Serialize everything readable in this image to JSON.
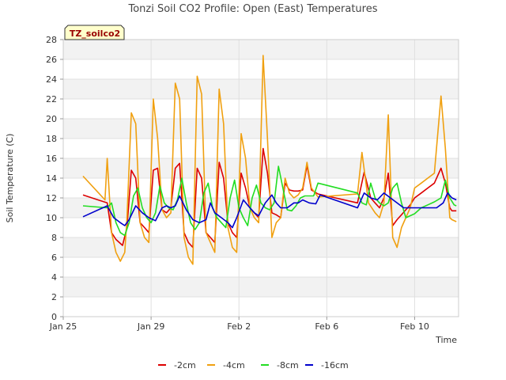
{
  "chart_data": {
    "type": "line",
    "title": "Tonzi Soil CO2 Profile: Open (East) Temperatures",
    "xlabel": "Time",
    "ylabel": "Soil Temperature (C)",
    "site_label": "TZ_soilco2",
    "xlim": [
      0,
      18
    ],
    "ylim": [
      0,
      28
    ],
    "yticks": [
      0,
      2,
      4,
      6,
      8,
      10,
      12,
      14,
      16,
      18,
      20,
      22,
      24,
      26,
      28
    ],
    "xticks": [
      {
        "x": 0,
        "label": "Jan 25"
      },
      {
        "x": 4,
        "label": "Jan 29"
      },
      {
        "x": 8,
        "label": "Feb 2"
      },
      {
        "x": 12,
        "label": "Feb 6"
      },
      {
        "x": 16,
        "label": "Feb 10"
      }
    ],
    "grid": true,
    "legend": "bottom",
    "series": [
      {
        "name": "-2cm",
        "color": "#dd0000",
        "x": [
          0.9,
          2.0,
          2.2,
          2.4,
          2.7,
          2.9,
          3.1,
          3.3,
          3.5,
          3.7,
          3.9,
          4.1,
          4.3,
          4.5,
          4.7,
          4.9,
          5.1,
          5.3,
          5.5,
          5.7,
          5.9,
          6.1,
          6.3,
          6.5,
          6.7,
          6.9,
          7.1,
          7.3,
          7.5,
          7.7,
          7.9,
          8.1,
          8.3,
          8.5,
          8.7,
          8.9,
          9.1,
          9.3,
          9.5,
          9.7,
          9.9,
          10.1,
          10.3,
          10.5,
          10.7,
          10.9,
          11.1,
          11.3,
          11.6,
          13.4,
          13.7,
          14.0,
          14.2,
          14.4,
          14.6,
          14.8,
          15.0,
          15.2,
          15.4,
          15.6,
          15.8,
          16.0,
          16.3,
          16.6,
          16.9,
          17.2,
          17.4,
          17.6,
          17.7,
          17.9
        ],
        "y": [
          12.3,
          11.5,
          8.5,
          7.8,
          7.2,
          9.0,
          14.8,
          14.0,
          9.5,
          9.0,
          8.5,
          14.8,
          15.0,
          10.8,
          10.5,
          11.0,
          15.0,
          15.5,
          8.5,
          7.5,
          7.0,
          15.0,
          14.0,
          8.5,
          8.0,
          7.5,
          15.6,
          14.0,
          9.5,
          8.5,
          8.0,
          14.5,
          13.0,
          11.0,
          10.5,
          10.0,
          17.0,
          14.5,
          10.5,
          10.3,
          10.0,
          13.5,
          12.8,
          12.7,
          12.7,
          12.8,
          15.3,
          12.8,
          12.4,
          11.5,
          14.6,
          12.0,
          11.5,
          11.0,
          12.0,
          14.5,
          9.2,
          9.8,
          10.3,
          10.8,
          11.3,
          12.0,
          12.5,
          13.0,
          13.5,
          15.0,
          13.5,
          11.0,
          10.7,
          10.7
        ]
      },
      {
        "name": "-4cm",
        "color": "#f0a010",
        "x": [
          0.9,
          1.9,
          2.0,
          2.2,
          2.4,
          2.6,
          2.8,
          2.9,
          3.1,
          3.3,
          3.5,
          3.7,
          3.9,
          4.1,
          4.3,
          4.5,
          4.7,
          4.9,
          5.1,
          5.3,
          5.5,
          5.7,
          5.9,
          6.1,
          6.3,
          6.5,
          6.7,
          6.9,
          7.1,
          7.3,
          7.5,
          7.7,
          7.9,
          8.1,
          8.3,
          8.5,
          8.7,
          8.9,
          9.1,
          9.3,
          9.5,
          9.7,
          9.9,
          10.1,
          10.3,
          10.5,
          10.7,
          10.9,
          11.1,
          11.3,
          11.6,
          13.4,
          13.6,
          13.9,
          14.2,
          14.4,
          14.6,
          14.8,
          15.0,
          15.2,
          15.4,
          15.6,
          15.8,
          16.0,
          16.3,
          16.6,
          16.9,
          17.2,
          17.4,
          17.6,
          17.7,
          17.9
        ],
        "y": [
          14.2,
          11.8,
          16.0,
          8.5,
          6.5,
          5.6,
          6.5,
          10.0,
          20.6,
          19.5,
          9.5,
          8.0,
          7.5,
          22.0,
          18.0,
          10.8,
          10.0,
          10.5,
          23.6,
          22.0,
          8.0,
          6.0,
          5.3,
          24.3,
          22.5,
          8.5,
          7.5,
          6.5,
          23.0,
          19.5,
          9.0,
          7.0,
          6.5,
          18.5,
          16.0,
          11.0,
          10.0,
          9.5,
          26.4,
          18.0,
          8.0,
          9.5,
          10.0,
          14.0,
          12.5,
          12.0,
          12.3,
          13.0,
          15.6,
          13.0,
          12.1,
          12.4,
          16.6,
          11.5,
          10.5,
          10.0,
          11.5,
          20.4,
          8.0,
          7.0,
          9.0,
          10.0,
          11.0,
          13.0,
          13.5,
          14.0,
          14.5,
          22.3,
          17.0,
          10.0,
          9.8,
          9.6
        ]
      },
      {
        "name": "-8cm",
        "color": "#22dd22",
        "x": [
          0.9,
          2.0,
          2.2,
          2.4,
          2.6,
          2.8,
          3.0,
          3.2,
          3.4,
          3.6,
          3.8,
          4.0,
          4.2,
          4.4,
          4.6,
          4.8,
          5.0,
          5.2,
          5.4,
          5.6,
          5.8,
          6.0,
          6.2,
          6.4,
          6.6,
          6.8,
          7.0,
          7.2,
          7.4,
          7.6,
          7.8,
          8.0,
          8.2,
          8.4,
          8.6,
          8.8,
          9.0,
          9.2,
          9.4,
          9.6,
          9.8,
          10.0,
          10.2,
          10.4,
          10.6,
          10.8,
          11.0,
          11.2,
          11.4,
          11.6,
          13.4,
          13.6,
          13.8,
          14.0,
          14.2,
          14.4,
          14.6,
          14.8,
          15.0,
          15.2,
          15.4,
          15.6,
          15.8,
          16.0,
          16.3,
          16.6,
          16.9,
          17.2,
          17.4,
          17.6,
          17.8,
          17.9
        ],
        "y": [
          11.2,
          11.0,
          11.5,
          9.5,
          8.5,
          8.2,
          9.5,
          12.2,
          13.0,
          11.0,
          10.0,
          9.5,
          10.5,
          13.2,
          11.5,
          11.0,
          10.8,
          11.8,
          14.0,
          11.5,
          9.5,
          8.8,
          9.5,
          12.5,
          13.5,
          11.0,
          10.0,
          9.5,
          9.0,
          12.0,
          13.8,
          11.0,
          10.0,
          9.2,
          12.0,
          13.3,
          11.5,
          11.0,
          10.8,
          11.5,
          15.2,
          13.0,
          10.8,
          10.7,
          11.2,
          12.0,
          12.2,
          12.2,
          12.2,
          13.5,
          12.5,
          11.5,
          11.3,
          13.5,
          12.0,
          11.5,
          11.2,
          11.5,
          13.0,
          13.5,
          11.5,
          10.0,
          10.2,
          10.4,
          11.0,
          11.3,
          11.6,
          12.0,
          13.8,
          12.0,
          11.3,
          11.2
        ]
      },
      {
        "name": "-16cm",
        "color": "#0000cc",
        "x": [
          0.9,
          2.0,
          2.3,
          2.6,
          2.8,
          3.0,
          3.3,
          3.6,
          3.9,
          4.2,
          4.5,
          4.7,
          4.9,
          5.1,
          5.3,
          5.6,
          5.9,
          6.2,
          6.5,
          6.7,
          6.9,
          7.2,
          7.5,
          7.7,
          7.9,
          8.2,
          8.5,
          8.7,
          8.9,
          9.2,
          9.5,
          9.7,
          9.9,
          10.2,
          10.5,
          10.7,
          10.9,
          11.2,
          11.5,
          11.7,
          13.4,
          13.7,
          14.0,
          14.3,
          14.6,
          14.9,
          15.2,
          15.5,
          15.8,
          16.1,
          16.4,
          16.7,
          17.0,
          17.3,
          17.5,
          17.7,
          17.9
        ],
        "y": [
          10.1,
          11.2,
          10.0,
          9.5,
          9.2,
          9.8,
          11.2,
          10.5,
          10.0,
          9.7,
          11.0,
          11.2,
          11.0,
          11.2,
          12.2,
          10.8,
          9.8,
          9.5,
          9.8,
          11.5,
          10.5,
          10.0,
          9.5,
          9.0,
          10.0,
          11.8,
          11.0,
          10.5,
          10.2,
          11.5,
          12.3,
          11.5,
          11.0,
          11.0,
          11.5,
          11.5,
          11.8,
          11.5,
          11.4,
          12.3,
          11.0,
          12.5,
          12.0,
          11.8,
          12.5,
          12.0,
          11.5,
          11.0,
          11.0,
          11.0,
          11.0,
          11.0,
          11.0,
          11.5,
          12.5,
          12.0,
          11.8
        ]
      }
    ]
  }
}
